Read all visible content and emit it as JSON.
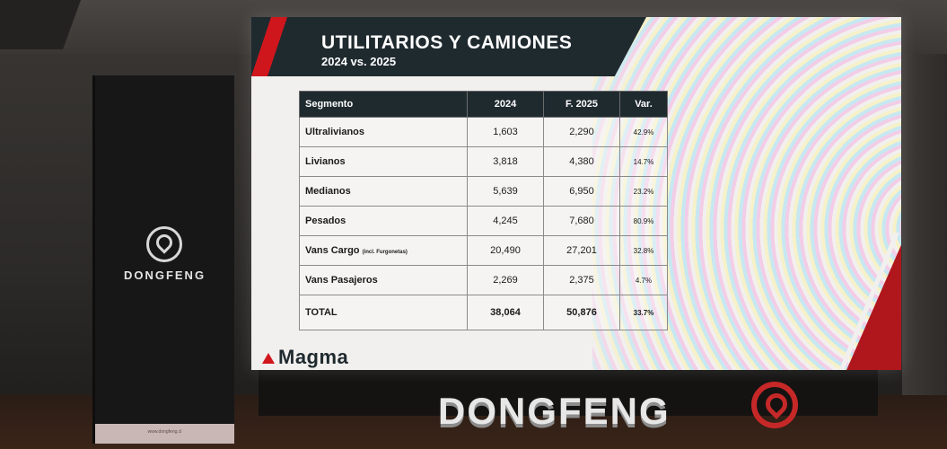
{
  "banner": {
    "brand": "DONGFENG",
    "url": "www.dongfeng.cl",
    "logo_icon": "dongfeng-logo-icon"
  },
  "slide": {
    "title": "UTILITARIOS Y CAMIONES",
    "subtitle": "2024 vs. 2025",
    "footer_brand": "Magma",
    "accent_color": "#d0161d",
    "header_color": "#1f2a2f",
    "table": {
      "headers": [
        "Segmento",
        "2024",
        "F. 2025",
        "Var."
      ],
      "rows": [
        {
          "segment": "Ultralivianos",
          "note": "",
          "y2024": "1,603",
          "f2025": "2,290",
          "var": "42.9%"
        },
        {
          "segment": "Livianos",
          "note": "",
          "y2024": "3,818",
          "f2025": "4,380",
          "var": "14.7%"
        },
        {
          "segment": "Medianos",
          "note": "",
          "y2024": "5,639",
          "f2025": "6,950",
          "var": "23.2%"
        },
        {
          "segment": "Pesados",
          "note": "",
          "y2024": "4,245",
          "f2025": "7,680",
          "var": "80.9%"
        },
        {
          "segment": "Vans Cargo",
          "note": "(incl. Furgonetas)",
          "y2024": "20,490",
          "f2025": "27,201",
          "var": "32.8%"
        },
        {
          "segment": "Vans Pasajeros",
          "note": "",
          "y2024": "2,269",
          "f2025": "2,375",
          "var": "4.7%"
        }
      ],
      "total": {
        "segment": "TOTAL",
        "y2024": "38,064",
        "f2025": "50,876",
        "var": "33.7%"
      }
    }
  },
  "floor_sign": {
    "brand": "DONGFENG",
    "logo_icon": "dongfeng-logo-icon"
  }
}
